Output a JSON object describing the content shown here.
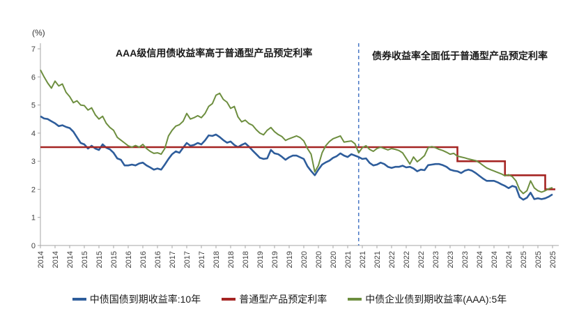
{
  "annotations": {
    "left": "AAA级信用债收益率高于普通型产品预定利率",
    "right": "债券收益率全面低于普通型产品预定利率"
  },
  "axis": {
    "y_unit_label": "(%)",
    "y_ticks": [
      0,
      1,
      2,
      3,
      4,
      5,
      6,
      7
    ],
    "x_tick_labels": [
      "2014",
      "2014",
      "2014",
      "2015",
      "2015",
      "2015",
      "2016",
      "2016",
      "2016",
      "2017",
      "2017",
      "2017",
      "2018",
      "2018",
      "2018",
      "2019",
      "2019",
      "2019",
      "2020",
      "2020",
      "2020",
      "2021",
      "2021",
      "2021",
      "2022",
      "2022",
      "2022",
      "2023",
      "2023",
      "2023",
      "2024",
      "2024",
      "2024",
      "2025",
      "2025",
      "2025"
    ],
    "x_tick_interval_months": 4
  },
  "legend": [
    {
      "label": "中债国债到期收益率:10年",
      "color": "#2e5d9b"
    },
    {
      "label": "普通型产品预定利率",
      "color": "#a52523"
    },
    {
      "label": "中债企业债到期收益率(AAA):5年",
      "color": "#6d8e3f"
    }
  ],
  "chart_data": {
    "type": "line",
    "title": "",
    "ylabel": "(%)",
    "ylim": [
      0,
      7
    ],
    "grid": false,
    "legend_position": "bottom",
    "x_start": "2014-01",
    "x_end": "2025-09",
    "x_step": "1 month",
    "divider": {
      "x": "2021-04",
      "style": "dashed",
      "color": "#4f7cc7"
    },
    "series": [
      {
        "name": "中债国债到期收益率:10年",
        "color": "#2e5d9b",
        "kind": "line",
        "values": [
          4.6,
          4.52,
          4.5,
          4.42,
          4.35,
          4.25,
          4.28,
          4.22,
          4.18,
          4.05,
          3.85,
          3.65,
          3.6,
          3.45,
          3.55,
          3.45,
          3.4,
          3.6,
          3.48,
          3.42,
          3.3,
          3.1,
          3.05,
          2.85,
          2.85,
          2.88,
          2.85,
          2.92,
          2.95,
          2.85,
          2.78,
          2.7,
          2.74,
          2.7,
          2.88,
          3.08,
          3.25,
          3.35,
          3.3,
          3.48,
          3.65,
          3.55,
          3.58,
          3.65,
          3.6,
          3.74,
          3.92,
          3.9,
          3.95,
          3.86,
          3.75,
          3.66,
          3.7,
          3.58,
          3.5,
          3.58,
          3.64,
          3.52,
          3.38,
          3.25,
          3.12,
          3.08,
          3.1,
          3.4,
          3.28,
          3.25,
          3.16,
          3.05,
          3.14,
          3.2,
          3.2,
          3.14,
          3.08,
          2.82,
          2.65,
          2.5,
          2.7,
          2.88,
          2.96,
          3.02,
          3.12,
          3.18,
          3.28,
          3.2,
          3.15,
          3.25,
          3.2,
          3.15,
          3.08,
          3.1,
          2.94,
          2.85,
          2.88,
          2.95,
          2.9,
          2.8,
          2.76,
          2.8,
          2.8,
          2.84,
          2.78,
          2.8,
          2.74,
          2.64,
          2.7,
          2.68,
          2.86,
          2.88,
          2.9,
          2.9,
          2.86,
          2.8,
          2.7,
          2.66,
          2.64,
          2.58,
          2.66,
          2.7,
          2.66,
          2.58,
          2.48,
          2.38,
          2.3,
          2.3,
          2.3,
          2.25,
          2.18,
          2.12,
          2.04,
          2.12,
          2.08,
          1.72,
          1.63,
          1.7,
          1.88,
          1.65,
          1.68,
          1.65,
          1.68,
          1.74,
          1.82
        ]
      },
      {
        "name": "普通型产品预定利率",
        "color": "#a52523",
        "kind": "step",
        "steps": [
          {
            "from": "2014-01",
            "to": "2023-06",
            "rate": 3.5
          },
          {
            "from": "2023-07",
            "to": "2024-07",
            "rate": 3.0
          },
          {
            "from": "2024-08",
            "to": "2025-06",
            "rate": 2.5
          },
          {
            "from": "2025-07",
            "to": "2025-09",
            "rate": 2.0
          }
        ]
      },
      {
        "name": "中债企业债到期收益率(AAA):5年",
        "color": "#6d8e3f",
        "kind": "line",
        "values": [
          6.25,
          6.0,
          5.78,
          5.6,
          5.85,
          5.68,
          5.75,
          5.45,
          5.3,
          5.08,
          5.15,
          5.0,
          4.98,
          4.82,
          4.9,
          4.65,
          4.5,
          4.6,
          4.35,
          4.2,
          4.1,
          3.85,
          3.75,
          3.65,
          3.55,
          3.5,
          3.56,
          3.5,
          3.6,
          3.45,
          3.35,
          3.28,
          3.3,
          3.25,
          3.45,
          3.9,
          4.1,
          4.25,
          4.3,
          4.42,
          4.7,
          4.5,
          4.55,
          4.62,
          4.55,
          4.7,
          4.95,
          5.05,
          5.35,
          5.42,
          5.2,
          5.1,
          4.88,
          4.95,
          4.58,
          4.4,
          4.46,
          4.34,
          4.28,
          4.12,
          4.0,
          3.94,
          4.1,
          4.2,
          4.05,
          3.95,
          3.88,
          3.74,
          3.8,
          3.85,
          3.9,
          3.84,
          3.72,
          3.45,
          3.25,
          2.62,
          2.85,
          3.3,
          3.55,
          3.7,
          3.8,
          3.85,
          3.9,
          3.68,
          3.7,
          3.72,
          3.62,
          3.3,
          3.48,
          3.55,
          3.42,
          3.35,
          3.45,
          3.5,
          3.45,
          3.4,
          3.45,
          3.42,
          3.38,
          3.3,
          3.1,
          2.9,
          3.15,
          2.98,
          3.08,
          3.2,
          3.48,
          3.52,
          3.48,
          3.42,
          3.38,
          3.32,
          3.25,
          3.28,
          3.18,
          3.15,
          3.12,
          3.08,
          3.05,
          3.02,
          2.95,
          2.85,
          2.76,
          2.7,
          2.65,
          2.6,
          2.55,
          2.48,
          2.52,
          2.45,
          2.3,
          1.98,
          1.85,
          1.95,
          2.3,
          2.05,
          1.95,
          1.9,
          1.95,
          2.02,
          2.06
        ]
      }
    ]
  }
}
